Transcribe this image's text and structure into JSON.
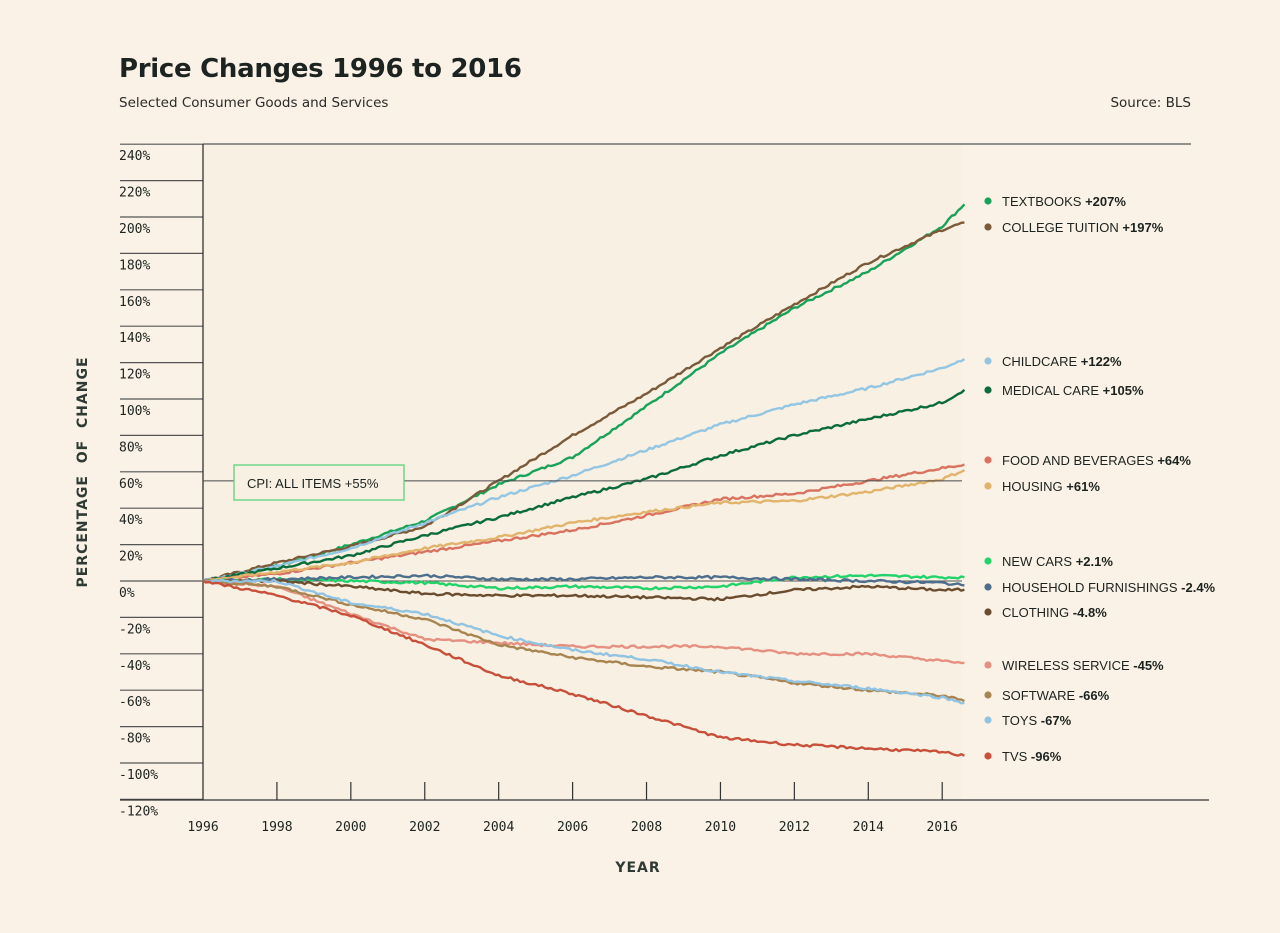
{
  "header": {
    "title": "Price Changes 1996 to 2016",
    "subtitle": "Selected Consumer Goods and Services",
    "source": "Source: BLS"
  },
  "chart_data": {
    "type": "line",
    "title": "Price Changes 1996 to 2016",
    "subtitle": "Selected Consumer Goods and Services",
    "xlabel": "YEAR",
    "ylabel": "PERCENTAGE  OF  CHANGE",
    "xlim": [
      1996,
      2016.6
    ],
    "ylim": [
      -120,
      240
    ],
    "x_ticks": [
      "1996",
      "1998",
      "2000",
      "2002",
      "2004",
      "2006",
      "2008",
      "2010",
      "2012",
      "2014",
      "2016"
    ],
    "y_ticks": [
      "240%",
      "220%",
      "200%",
      "180%",
      "160%",
      "140%",
      "120%",
      "100%",
      "80%",
      "60%",
      "40%",
      "20%",
      "0%",
      "-20%",
      "-40%",
      "-60%",
      "-80%",
      "-100%",
      "-120%"
    ],
    "x": [
      1996,
      1998,
      2000,
      2002,
      2004,
      2006,
      2008,
      2010,
      2012,
      2014,
      2016,
      2016.6
    ],
    "reference_line": {
      "label": "CPI: ALL ITEMS +55%",
      "value": 55,
      "color": "#5fd37f"
    },
    "legend_position": "right",
    "series": [
      {
        "name": "TEXTBOOKS",
        "change": "+207%",
        "color": "#19a35a",
        "values": [
          0,
          8,
          20,
          33,
          53,
          68,
          96,
          125,
          150,
          170,
          195,
          207
        ]
      },
      {
        "name": "COLLEGE TUITION",
        "change": "+197%",
        "color": "#7a5a3a",
        "values": [
          0,
          10,
          19,
          30,
          55,
          80,
          103,
          128,
          152,
          175,
          193,
          197
        ]
      },
      {
        "name": "CHILDCARE",
        "change": "+122%",
        "color": "#93c6e3",
        "values": [
          0,
          8,
          18,
          32,
          46,
          58,
          72,
          86,
          97,
          106,
          117,
          122
        ]
      },
      {
        "name": "MEDICAL CARE",
        "change": "+105%",
        "color": "#0b6b3a",
        "values": [
          0,
          7,
          14,
          25,
          35,
          46,
          56,
          69,
          80,
          89,
          98,
          105
        ]
      },
      {
        "name": "FOOD AND BEVERAGES",
        "change": "+64%",
        "color": "#d9735f",
        "values": [
          0,
          4,
          10,
          16,
          22,
          28,
          36,
          45,
          48,
          55,
          62,
          64
        ]
      },
      {
        "name": "HOUSING",
        "change": "+61%",
        "color": "#e2b36b",
        "values": [
          0,
          5,
          10,
          18,
          24,
          32,
          38,
          43,
          44,
          49,
          56,
          61
        ]
      },
      {
        "name": "NEW CARS",
        "change": "+2.1%",
        "color": "#22d36a",
        "values": [
          0,
          1,
          0,
          -1,
          -4,
          -3,
          -4,
          -3,
          2,
          3,
          2,
          2.1
        ]
      },
      {
        "name": "HOUSEHOLD FURNISHINGS",
        "change": "-2.4%",
        "color": "#4d6e8c",
        "values": [
          0,
          1,
          2,
          3,
          1,
          1,
          2,
          2,
          1,
          0,
          -1,
          -2.4
        ]
      },
      {
        "name": "CLOTHING",
        "change": "-4.8%",
        "color": "#6b4c2e",
        "values": [
          0,
          0,
          -3,
          -7,
          -8,
          -8,
          -9,
          -10,
          -5,
          -3,
          -5,
          -4.8
        ]
      },
      {
        "name": "WIRELESS SERVICE",
        "change": "-45%",
        "color": "#e59080",
        "values": [
          0,
          -3,
          -18,
          -32,
          -34,
          -36,
          -36,
          -36,
          -40,
          -40,
          -44,
          -45
        ]
      },
      {
        "name": "SOFTWARE",
        "change": "-66%",
        "color": "#a88550",
        "values": [
          0,
          -3,
          -13,
          -21,
          -35,
          -42,
          -47,
          -50,
          -56,
          -60,
          -63,
          -66
        ]
      },
      {
        "name": "TOYS",
        "change": "-67%",
        "color": "#91c3e2",
        "values": [
          0,
          0,
          -12,
          -18,
          -30,
          -38,
          -43,
          -50,
          -55,
          -59,
          -64,
          -67
        ]
      },
      {
        "name": "TVS",
        "change": "-96%",
        "color": "#c8503a",
        "values": [
          0,
          -8,
          -19,
          -35,
          -52,
          -62,
          -74,
          -86,
          -90,
          -92,
          -94,
          -96
        ]
      }
    ]
  }
}
